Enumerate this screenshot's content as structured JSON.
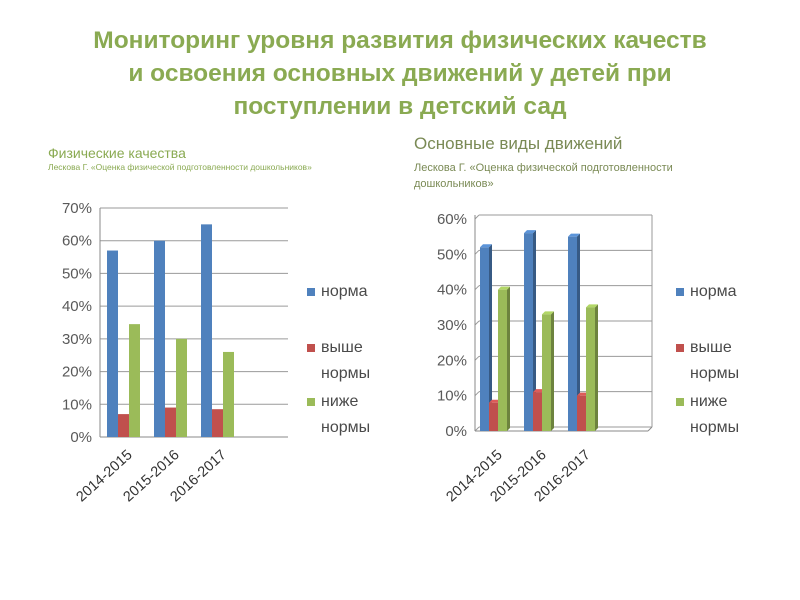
{
  "title": {
    "line1": "Мониторинг уровня развития физических качеств",
    "line2": "и освоения основных движений у детей при",
    "line3": "поступлении в детский сад"
  },
  "colors": {
    "norma": "#4f81bd",
    "vyshe": "#c0504d",
    "nizhe": "#9bbb59",
    "title": "#8aaa52"
  },
  "chart_data": [
    {
      "type": "bar",
      "title": "Физические качества",
      "subtitle": "Лескова Г. «Оценка физической подготовленности дошкольников»",
      "categories": [
        "2014-2015",
        "2015-2016",
        "2016-2017"
      ],
      "ylim": [
        0,
        70
      ],
      "yticks": [
        "0%",
        "10%",
        "20%",
        "30%",
        "40%",
        "50%",
        "60%",
        "70%"
      ],
      "series": [
        {
          "name": "норма",
          "values": [
            57,
            60,
            65
          ]
        },
        {
          "name": "выше нормы",
          "values": [
            7,
            9,
            8.5
          ]
        },
        {
          "name": "ниже нормы",
          "values": [
            34.5,
            30,
            26
          ]
        }
      ],
      "legend": "right"
    },
    {
      "type": "bar",
      "title": "Основные виды движений",
      "subtitle": "Лескова Г. «Оценка физической подготовленности дошкольников»",
      "categories": [
        "2014-2015",
        "2015-2016",
        "2016-2017"
      ],
      "ylim": [
        0,
        60
      ],
      "yticks": [
        "0%",
        "10%",
        "20%",
        "30%",
        "40%",
        "50%",
        "60%"
      ],
      "series": [
        {
          "name": "норма",
          "values": [
            52,
            56,
            55
          ]
        },
        {
          "name": "выше нормы",
          "values": [
            8,
            11,
            10
          ]
        },
        {
          "name": "ниже нормы",
          "values": [
            40,
            33,
            35
          ]
        }
      ],
      "legend": "right"
    }
  ],
  "legend_lines": {
    "norma": [
      "норма"
    ],
    "vyshe": [
      "выше",
      "нормы"
    ],
    "nizhe": [
      "ниже",
      "нормы"
    ]
  }
}
